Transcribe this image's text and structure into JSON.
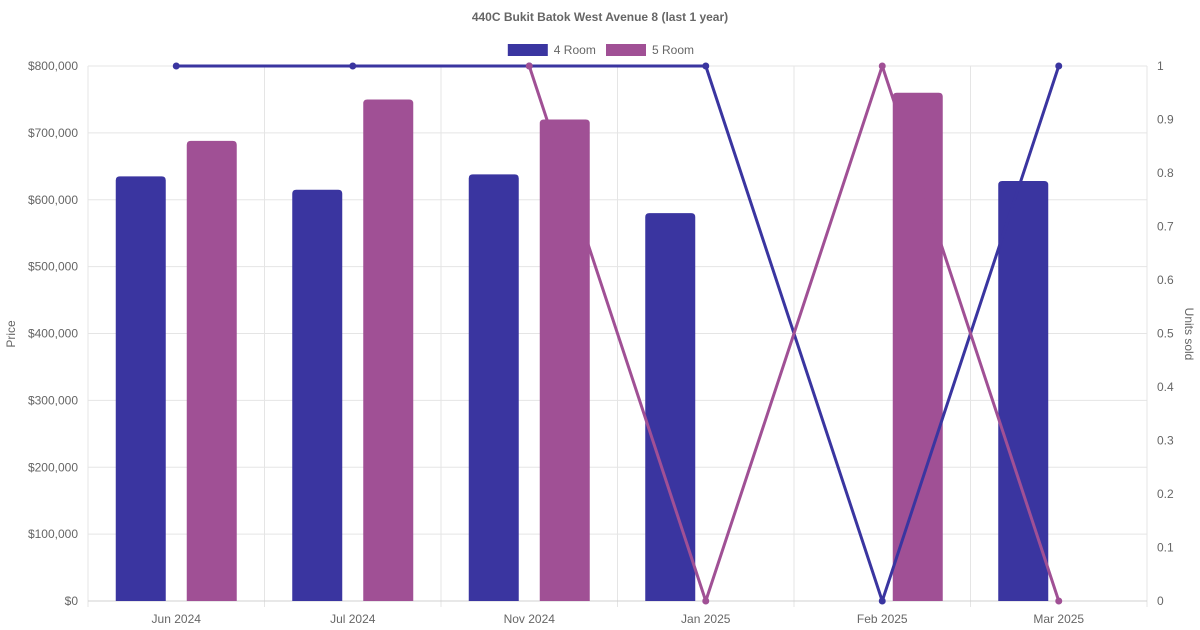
{
  "chart_data": {
    "type": "bar",
    "title": "440C Bukit Batok West Avenue 8 (last 1 year)",
    "categories": [
      "Jun 2024",
      "Jul 2024",
      "Nov 2024",
      "Jan 2025",
      "Feb 2025",
      "Mar 2025"
    ],
    "ylabel": "Price",
    "ylim": [
      0,
      800000
    ],
    "y_ticks": [
      "$0",
      "$100,000",
      "$200,000",
      "$300,000",
      "$400,000",
      "$500,000",
      "$600,000",
      "$700,000",
      "$800,000"
    ],
    "y2label": "Units sold",
    "y2lim": [
      0,
      1
    ],
    "y2_ticks": [
      "0",
      "0.1",
      "0.2",
      "0.3",
      "0.4",
      "0.5",
      "0.6",
      "0.7",
      "0.8",
      "0.9",
      "1"
    ],
    "legend_position": "top-center",
    "grid": true,
    "series": [
      {
        "name": "4 Room",
        "color": "#3a35a0",
        "price_values": [
          635000,
          615000,
          638000,
          580000,
          null,
          628000
        ],
        "units_sold": [
          1,
          1,
          1,
          1,
          0,
          1
        ]
      },
      {
        "name": "5 Room",
        "color": "#a05095",
        "price_values": [
          688000,
          750000,
          720000,
          null,
          760000,
          null
        ],
        "units_sold": [
          null,
          null,
          1,
          0,
          1,
          0
        ]
      }
    ]
  }
}
